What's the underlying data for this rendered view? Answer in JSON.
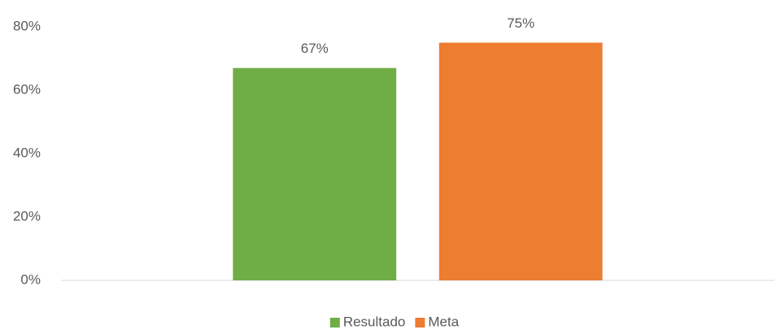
{
  "chart_data": {
    "type": "bar",
    "categories": [
      null
    ],
    "series": [
      {
        "name": "Resultado",
        "color": "#70ad47",
        "values": [
          67
        ],
        "value_labels": [
          "67%"
        ]
      },
      {
        "name": "Meta",
        "color": "#ed7d31",
        "values": [
          75
        ],
        "value_labels": [
          "75%"
        ]
      }
    ],
    "ylim": [
      0,
      80
    ],
    "yticks": [
      {
        "value": 0,
        "label": "0%"
      },
      {
        "value": 20,
        "label": "20%"
      },
      {
        "value": 40,
        "label": "40%"
      },
      {
        "value": 60,
        "label": "60%"
      },
      {
        "value": 80,
        "label": "80%"
      }
    ],
    "grid": false,
    "legend": "bottom"
  }
}
